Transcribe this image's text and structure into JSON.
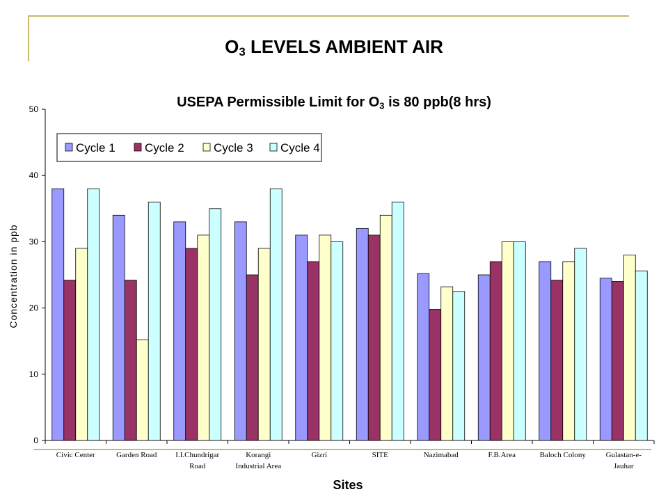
{
  "slide": {
    "title_main": "O",
    "title_sub": "3",
    "title_rest": " LEVELS AMBIENT AIR"
  },
  "chart_data": {
    "type": "bar",
    "subtitle_pre": "USEPA Permissible Limit for O",
    "subtitle_sub": "3",
    "subtitle_post": " is 80 ppb(8 hrs)",
    "xlabel": "Sites",
    "ylabel": "Concentration in ppb",
    "ylim": [
      0,
      50
    ],
    "yticks": [
      0,
      10,
      20,
      30,
      40,
      50
    ],
    "categories": [
      [
        "Civic Center"
      ],
      [
        "Garden Road"
      ],
      [
        "I.I.Chundrigar",
        "Road"
      ],
      [
        "Korangi",
        "Industrial Area"
      ],
      [
        "Gizri"
      ],
      [
        "SITE"
      ],
      [
        "Nazimabad"
      ],
      [
        "F.B.Area"
      ],
      [
        "Baloch Colony"
      ],
      [
        "Gulastan-e-",
        "Jauhar"
      ]
    ],
    "series": [
      {
        "name": "Cycle 1",
        "color": "#9999ff",
        "values": [
          38,
          34,
          33,
          33,
          31,
          32,
          25.2,
          25,
          27,
          24.5
        ]
      },
      {
        "name": "Cycle 2",
        "color": "#993366",
        "values": [
          24.2,
          24.2,
          29,
          25,
          27,
          31,
          19.8,
          27,
          24.2,
          24
        ]
      },
      {
        "name": "Cycle 3",
        "color": "#ffffcc",
        "values": [
          29,
          15.2,
          31,
          29,
          31,
          34,
          23.2,
          30,
          27,
          28
        ]
      },
      {
        "name": "Cycle 4",
        "color": "#ccffff",
        "values": [
          38,
          36,
          35,
          38,
          30,
          36,
          22.5,
          30,
          29,
          25.6
        ]
      }
    ],
    "legend_position": "top-left",
    "grid": false
  }
}
